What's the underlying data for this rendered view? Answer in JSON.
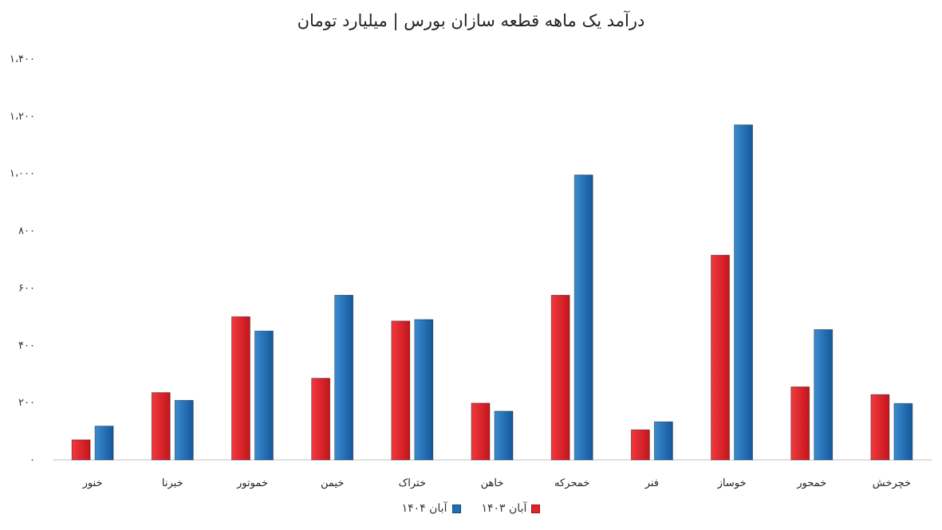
{
  "chart_data": {
    "type": "bar",
    "title": "درآمد یک ماهه قطعه سازان بورس | میلیارد تومان",
    "categories": [
      "خنور",
      "خبرنا",
      "خموتور",
      "خیمن",
      "ختراک",
      "خاهن",
      "خمحرکه",
      "فنر",
      "خوساز",
      "خمحور",
      "خچرخش"
    ],
    "series": [
      {
        "name": "آبان ۱۴۰۳",
        "color": "#e4222a",
        "values": [
          70,
          235,
          500,
          285,
          485,
          198,
          575,
          105,
          715,
          255,
          228
        ]
      },
      {
        "name": "آبان ۱۴۰۴",
        "color": "#1f6fb5",
        "values": [
          118,
          208,
          450,
          575,
          490,
          170,
          995,
          133,
          1170,
          455,
          197
        ]
      }
    ],
    "ylim": [
      0,
      1400
    ],
    "yticks": [
      0,
      200,
      400,
      600,
      800,
      1000,
      1200,
      1400
    ],
    "ytick_labels": [
      "۰",
      "۲۰۰",
      "۴۰۰",
      "۶۰۰",
      "۸۰۰",
      "۱،۰۰۰",
      "۱،۲۰۰",
      "۱،۴۰۰"
    ],
    "grid": false,
    "legend_position": "bottom"
  }
}
